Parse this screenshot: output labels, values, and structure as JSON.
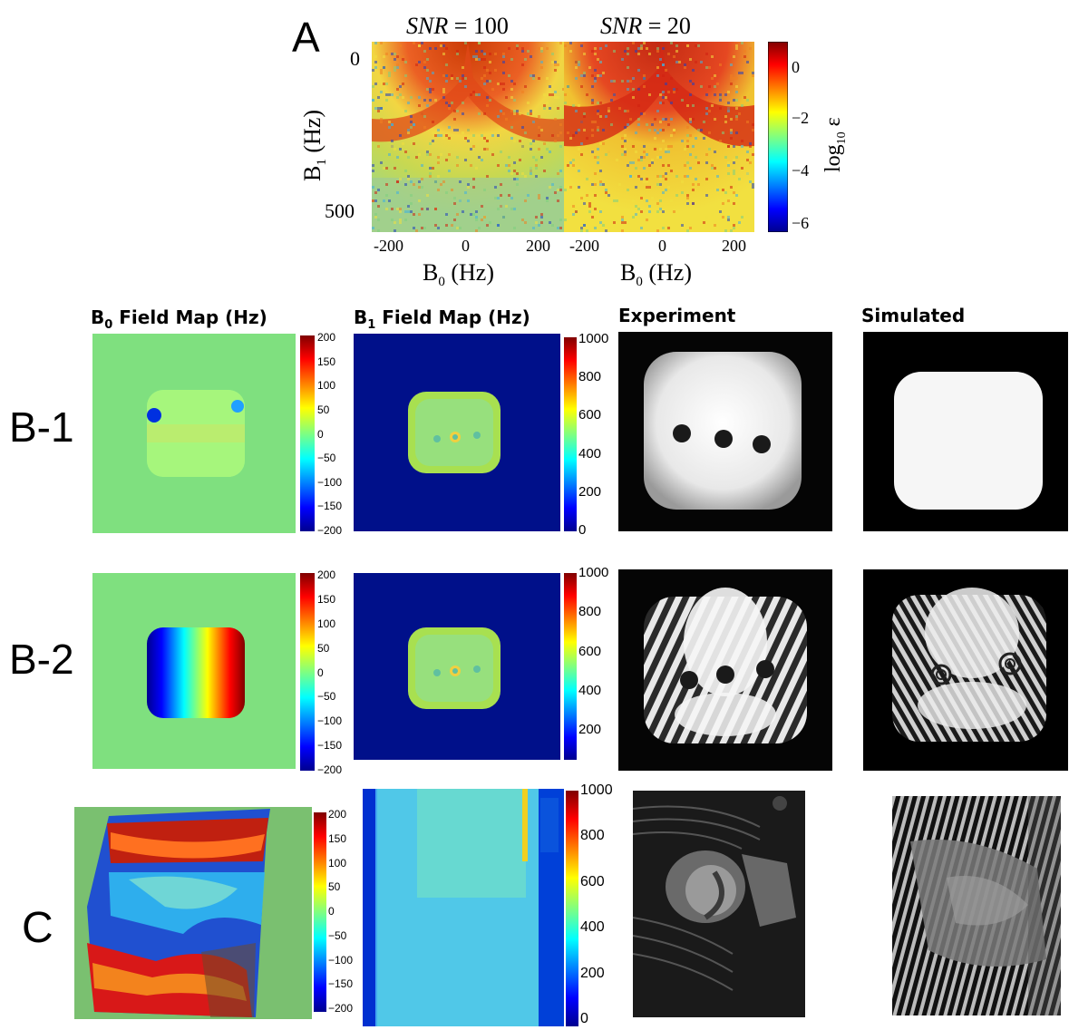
{
  "panelA": {
    "letter": "A",
    "titles": [
      "SNR = 100",
      "SNR = 20"
    ],
    "snr_label": "SNR",
    "snr_values": [
      "100",
      "20"
    ],
    "ylabel": "B",
    "ylabel_sub": "1",
    "ylabel_unit": " (Hz)",
    "xlabel": "B",
    "xlabel_sub": "0",
    "xlabel_unit": " (Hz)",
    "yticks": [
      "0",
      "500"
    ],
    "xticks": [
      "-200",
      "0",
      "200"
    ],
    "colorbar_label": "log",
    "colorbar_label_sub": "10",
    "colorbar_label_tail": " ε",
    "colorbar_ticks": [
      "0",
      "−2",
      "−4",
      "−6"
    ]
  },
  "headers": {
    "b0": {
      "main": "B",
      "sub": "0",
      "tail": " Field Map (Hz)"
    },
    "b1": {
      "main": "B",
      "sub": "1",
      "tail": " Field Map (Hz)"
    },
    "experiment": "Experiment",
    "simulated": "Simulated"
  },
  "rows": {
    "b1": "B-1",
    "b2": "B-2",
    "c": "C"
  },
  "colorbars": {
    "b0_ticks": [
      "200",
      "150",
      "100",
      "50",
      "0",
      "−50",
      "−100",
      "−150",
      "−200"
    ],
    "b1_ticks_row1": [
      "1000",
      "800",
      "600",
      "400",
      "200",
      "0"
    ],
    "b1_ticks_row2": [
      "1000",
      "800",
      "600",
      "400",
      "200"
    ],
    "c_b0_ticks": [
      "200",
      "150",
      "100",
      "50",
      "0",
      "−50",
      "−100",
      "−150",
      "−200"
    ],
    "c_b1_ticks": [
      "1000",
      "800",
      "600",
      "400",
      "200",
      "0"
    ]
  },
  "colors": {
    "jet_dark_blue": "#00008f",
    "jet_green": "#80ff80",
    "jet_red": "#800000",
    "field_bg_green": "#7fe07f",
    "b1_bg_blue": "#00108a"
  }
}
